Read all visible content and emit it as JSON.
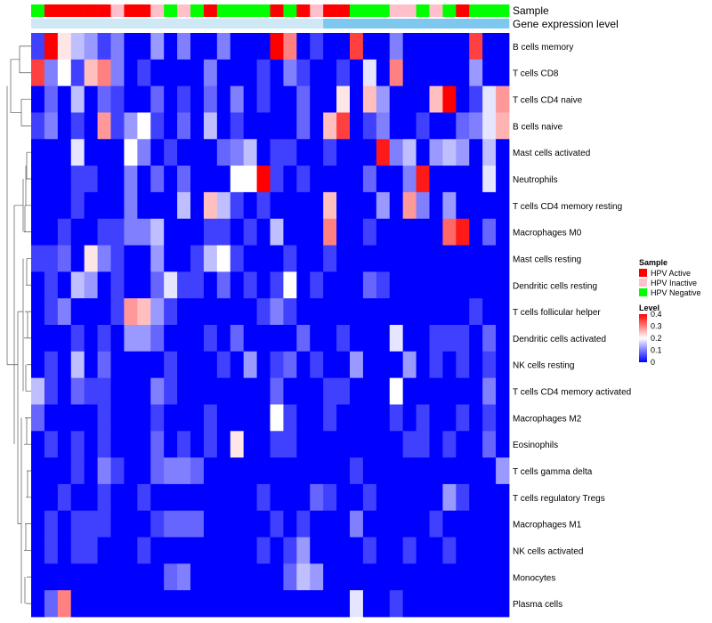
{
  "chart_data": {
    "type": "heatmap",
    "title": "",
    "annotation_tracks": {
      "sample_label": "Sample",
      "gene_label": "Gene expression level"
    },
    "sample_annotation": [
      "N",
      "A",
      "A",
      "A",
      "A",
      "A",
      "I",
      "A",
      "A",
      "I",
      "N",
      "I",
      "N",
      "A",
      "N",
      "N",
      "N",
      "N",
      "A",
      "N",
      "A",
      "I",
      "A",
      "A",
      "N",
      "N",
      "N",
      "I",
      "I",
      "N",
      "I",
      "N",
      "A",
      "N",
      "N",
      "N"
    ],
    "rows": [
      "B cells memory",
      "T cells CD8",
      "T cells CD4 naive",
      "B cells naive",
      "Mast cells activated",
      "Neutrophils",
      "T cells CD4 memory resting",
      "Macrophages M0",
      "Mast cells resting",
      "Dendritic cells resting",
      "T cells follicular helper",
      "Dendritic cells activated",
      "NK cells resting",
      "T cells CD4 memory activated",
      "Macrophages M2",
      "Eosinophils",
      "T cells gamma delta",
      "T cells regulatory  Tregs",
      "Macrophages M1",
      "NK cells activated",
      "Monocytes",
      "Plasma cells"
    ],
    "values": [
      [
        0.05,
        0.4,
        0.22,
        0.15,
        0.12,
        0.05,
        0.1,
        0.0,
        0.0,
        0.12,
        0.0,
        0.1,
        0.0,
        0.0,
        0.1,
        0.0,
        0.0,
        0.0,
        0.4,
        0.3,
        0.0,
        0.05,
        0.0,
        0.0,
        0.35,
        0.0,
        0.0,
        0.1,
        0.0,
        0.0,
        0.0,
        0.0,
        0.0,
        0.35,
        0.0,
        0.0
      ],
      [
        0.35,
        0.1,
        0.2,
        0.05,
        0.25,
        0.3,
        0.1,
        0.0,
        0.05,
        0.0,
        0.0,
        0.0,
        0.0,
        0.1,
        0.0,
        0.0,
        0.0,
        0.05,
        0.0,
        0.1,
        0.05,
        0.0,
        0.0,
        0.05,
        0.0,
        0.18,
        0.0,
        0.3,
        0.0,
        0.0,
        0.0,
        0.0,
        0.0,
        0.12,
        0.0,
        0.0
      ],
      [
        0.0,
        0.08,
        0.0,
        0.15,
        0.0,
        0.08,
        0.05,
        0.0,
        0.0,
        0.08,
        0.0,
        0.05,
        0.0,
        0.08,
        0.0,
        0.1,
        0.0,
        0.05,
        0.0,
        0.0,
        0.08,
        0.0,
        0.0,
        0.22,
        0.0,
        0.25,
        0.12,
        0.0,
        0.0,
        0.0,
        0.25,
        0.4,
        0.0,
        0.05,
        0.18,
        0.28
      ],
      [
        0.05,
        0.1,
        0.0,
        0.05,
        0.0,
        0.28,
        0.05,
        0.12,
        0.2,
        0.05,
        0.0,
        0.08,
        0.0,
        0.15,
        0.0,
        0.05,
        0.0,
        0.0,
        0.0,
        0.0,
        0.08,
        0.0,
        0.25,
        0.35,
        0.0,
        0.05,
        0.1,
        0.0,
        0.0,
        0.05,
        0.0,
        0.0,
        0.08,
        0.1,
        0.18,
        0.26
      ],
      [
        0.0,
        0.0,
        0.0,
        0.18,
        0.0,
        0.0,
        0.0,
        0.2,
        0.1,
        0.0,
        0.05,
        0.0,
        0.0,
        0.0,
        0.08,
        0.1,
        0.15,
        0.0,
        0.05,
        0.05,
        0.0,
        0.0,
        0.05,
        0.0,
        0.0,
        0.0,
        0.38,
        0.1,
        0.15,
        0.0,
        0.12,
        0.15,
        0.12,
        0.0,
        0.15,
        0.0
      ],
      [
        0.0,
        0.0,
        0.0,
        0.05,
        0.05,
        0.0,
        0.0,
        0.1,
        0.0,
        0.08,
        0.0,
        0.08,
        0.0,
        0.0,
        0.0,
        0.2,
        0.2,
        0.4,
        0.05,
        0.0,
        0.05,
        0.0,
        0.0,
        0.0,
        0.0,
        0.08,
        0.0,
        0.0,
        0.1,
        0.38,
        0.0,
        0.0,
        0.0,
        0.0,
        0.18,
        0.0
      ],
      [
        0.0,
        0.0,
        0.0,
        0.05,
        0.0,
        0.0,
        0.0,
        0.1,
        0.0,
        0.0,
        0.0,
        0.15,
        0.0,
        0.25,
        0.15,
        0.05,
        0.0,
        0.05,
        0.0,
        0.0,
        0.0,
        0.0,
        0.25,
        0.0,
        0.0,
        0.0,
        0.12,
        0.0,
        0.28,
        0.1,
        0.0,
        0.12,
        0.0,
        0.0,
        0.0,
        0.0
      ],
      [
        0.0,
        0.0,
        0.05,
        0.0,
        0.0,
        0.05,
        0.05,
        0.1,
        0.1,
        0.15,
        0.0,
        0.0,
        0.0,
        0.05,
        0.05,
        0.0,
        0.05,
        0.0,
        0.15,
        0.0,
        0.0,
        0.0,
        0.3,
        0.0,
        0.0,
        0.05,
        0.0,
        0.0,
        0.0,
        0.0,
        0.0,
        0.32,
        0.38,
        0.0,
        0.08,
        0.0
      ],
      [
        0.05,
        0.05,
        0.08,
        0.0,
        0.22,
        0.1,
        0.05,
        0.0,
        0.0,
        0.12,
        0.0,
        0.0,
        0.05,
        0.15,
        0.2,
        0.05,
        0.0,
        0.0,
        0.0,
        0.05,
        0.0,
        0.0,
        0.05,
        0.0,
        0.0,
        0.0,
        0.0,
        0.0,
        0.0,
        0.0,
        0.0,
        0.0,
        0.0,
        0.0,
        0.0,
        0.0
      ],
      [
        0.0,
        0.05,
        0.0,
        0.15,
        0.12,
        0.0,
        0.05,
        0.0,
        0.0,
        0.08,
        0.18,
        0.05,
        0.05,
        0.0,
        0.08,
        0.0,
        0.05,
        0.0,
        0.05,
        0.2,
        0.0,
        0.05,
        0.0,
        0.0,
        0.0,
        0.08,
        0.05,
        0.0,
        0.0,
        0.0,
        0.0,
        0.0,
        0.0,
        0.0,
        0.0,
        0.0
      ],
      [
        0.0,
        0.05,
        0.1,
        0.0,
        0.0,
        0.0,
        0.05,
        0.28,
        0.25,
        0.12,
        0.05,
        0.0,
        0.0,
        0.0,
        0.0,
        0.0,
        0.0,
        0.05,
        0.1,
        0.05,
        0.0,
        0.0,
        0.0,
        0.0,
        0.0,
        0.0,
        0.0,
        0.0,
        0.0,
        0.0,
        0.0,
        0.0,
        0.0,
        0.05,
        0.0,
        0.0
      ],
      [
        0.0,
        0.0,
        0.0,
        0.05,
        0.0,
        0.05,
        0.0,
        0.12,
        0.12,
        0.08,
        0.0,
        0.0,
        0.0,
        0.05,
        0.0,
        0.08,
        0.0,
        0.0,
        0.0,
        0.0,
        0.08,
        0.0,
        0.0,
        0.05,
        0.0,
        0.0,
        0.0,
        0.18,
        0.0,
        0.0,
        0.05,
        0.05,
        0.05,
        0.0,
        0.08,
        0.0
      ],
      [
        0.0,
        0.05,
        0.0,
        0.15,
        0.0,
        0.08,
        0.0,
        0.0,
        0.0,
        0.0,
        0.05,
        0.0,
        0.0,
        0.0,
        0.05,
        0.0,
        0.12,
        0.0,
        0.05,
        0.08,
        0.0,
        0.05,
        0.0,
        0.0,
        0.12,
        0.0,
        0.0,
        0.0,
        0.12,
        0.0,
        0.05,
        0.0,
        0.05,
        0.0,
        0.05,
        0.0
      ],
      [
        0.15,
        0.05,
        0.0,
        0.08,
        0.05,
        0.05,
        0.0,
        0.0,
        0.0,
        0.1,
        0.05,
        0.0,
        0.0,
        0.0,
        0.0,
        0.0,
        0.0,
        0.0,
        0.08,
        0.0,
        0.0,
        0.0,
        0.05,
        0.05,
        0.0,
        0.0,
        0.0,
        0.2,
        0.0,
        0.0,
        0.0,
        0.0,
        0.0,
        0.0,
        0.1,
        0.0
      ],
      [
        0.08,
        0.0,
        0.0,
        0.0,
        0.0,
        0.05,
        0.0,
        0.0,
        0.0,
        0.05,
        0.0,
        0.0,
        0.0,
        0.05,
        0.0,
        0.0,
        0.0,
        0.0,
        0.2,
        0.05,
        0.0,
        0.0,
        0.05,
        0.0,
        0.0,
        0.0,
        0.0,
        0.05,
        0.0,
        0.05,
        0.0,
        0.0,
        0.05,
        0.0,
        0.05,
        0.0
      ],
      [
        0.0,
        0.05,
        0.0,
        0.05,
        0.0,
        0.05,
        0.0,
        0.0,
        0.0,
        0.08,
        0.0,
        0.05,
        0.0,
        0.05,
        0.0,
        0.22,
        0.0,
        0.0,
        0.05,
        0.05,
        0.0,
        0.0,
        0.0,
        0.0,
        0.0,
        0.0,
        0.0,
        0.0,
        0.05,
        0.05,
        0.0,
        0.05,
        0.0,
        0.0,
        0.08,
        0.0
      ],
      [
        0.0,
        0.0,
        0.0,
        0.05,
        0.0,
        0.1,
        0.05,
        0.0,
        0.0,
        0.08,
        0.1,
        0.1,
        0.08,
        0.0,
        0.0,
        0.0,
        0.0,
        0.0,
        0.0,
        0.0,
        0.0,
        0.0,
        0.0,
        0.0,
        0.05,
        0.0,
        0.0,
        0.0,
        0.0,
        0.0,
        0.0,
        0.0,
        0.0,
        0.0,
        0.0,
        0.12
      ],
      [
        0.0,
        0.0,
        0.05,
        0.0,
        0.0,
        0.05,
        0.0,
        0.0,
        0.05,
        0.0,
        0.0,
        0.0,
        0.0,
        0.0,
        0.0,
        0.0,
        0.0,
        0.05,
        0.0,
        0.0,
        0.0,
        0.08,
        0.05,
        0.0,
        0.0,
        0.05,
        0.0,
        0.0,
        0.0,
        0.0,
        0.0,
        0.12,
        0.05,
        0.0,
        0.0,
        0.0
      ],
      [
        0.0,
        0.05,
        0.0,
        0.05,
        0.05,
        0.05,
        0.0,
        0.0,
        0.0,
        0.05,
        0.08,
        0.08,
        0.08,
        0.0,
        0.0,
        0.0,
        0.0,
        0.0,
        0.05,
        0.0,
        0.05,
        0.0,
        0.0,
        0.0,
        0.1,
        0.0,
        0.0,
        0.0,
        0.0,
        0.0,
        0.05,
        0.0,
        0.0,
        0.0,
        0.0,
        0.0
      ],
      [
        0.0,
        0.05,
        0.0,
        0.05,
        0.05,
        0.0,
        0.0,
        0.0,
        0.05,
        0.0,
        0.0,
        0.0,
        0.0,
        0.0,
        0.0,
        0.0,
        0.0,
        0.05,
        0.0,
        0.05,
        0.12,
        0.0,
        0.0,
        0.0,
        0.0,
        0.05,
        0.0,
        0.0,
        0.05,
        0.0,
        0.0,
        0.05,
        0.0,
        0.0,
        0.0,
        0.0
      ],
      [
        0.0,
        0.0,
        0.0,
        0.0,
        0.0,
        0.0,
        0.0,
        0.0,
        0.0,
        0.0,
        0.08,
        0.1,
        0.0,
        0.0,
        0.0,
        0.0,
        0.0,
        0.0,
        0.0,
        0.08,
        0.15,
        0.12,
        0.0,
        0.0,
        0.0,
        0.0,
        0.0,
        0.0,
        0.0,
        0.0,
        0.0,
        0.0,
        0.0,
        0.0,
        0.0,
        0.0
      ],
      [
        0.0,
        0.08,
        0.3,
        0.0,
        0.0,
        0.0,
        0.0,
        0.0,
        0.0,
        0.0,
        0.0,
        0.0,
        0.0,
        0.0,
        0.0,
        0.0,
        0.0,
        0.0,
        0.0,
        0.0,
        0.0,
        0.0,
        0.0,
        0.0,
        0.18,
        0.0,
        0.0,
        0.05,
        0.0,
        0.0,
        0.0,
        0.0,
        0.0,
        0.0,
        0.0,
        0.0
      ]
    ],
    "legend": {
      "sample": {
        "title": "Sample",
        "items": [
          {
            "key": "A",
            "label": "HPV Active",
            "color": "#ff0000"
          },
          {
            "key": "I",
            "label": "HPV Inactive",
            "color": "#ffc0cb"
          },
          {
            "key": "N",
            "label": "HPV Negative",
            "color": "#00ff00"
          }
        ]
      },
      "level": {
        "title": "Level",
        "ticks": [
          0.4,
          0.3,
          0.2,
          0.1,
          0
        ],
        "range": [
          0,
          0.4
        ],
        "low_color": "#0000ff",
        "mid_color": "#ffffff",
        "high_color": "#ff0000"
      }
    },
    "gene_track_color": "#7ec8f0",
    "dendrogram": "rows"
  }
}
